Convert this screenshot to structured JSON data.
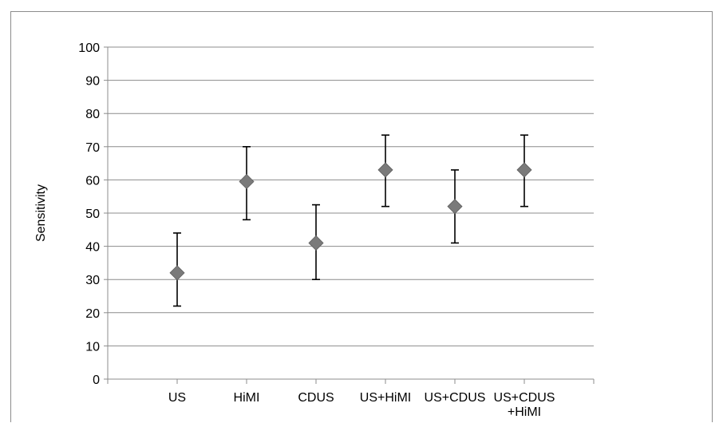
{
  "chart_data": {
    "type": "scatter",
    "title": "",
    "xlabel": "",
    "ylabel": "Sensitivity",
    "ylim": [
      0,
      100
    ],
    "yticks": [
      0,
      10,
      20,
      30,
      40,
      50,
      60,
      70,
      80,
      90,
      100
    ],
    "grid": true,
    "legend": "none",
    "categories": [
      [
        "US"
      ],
      [
        "HiMI"
      ],
      [
        "CDUS"
      ],
      [
        "US+HiMI"
      ],
      [
        "US+CDUS"
      ],
      [
        "US+CDUS",
        "+HiMI"
      ]
    ],
    "series": [
      {
        "values": [
          32,
          59.5,
          41,
          63,
          52,
          63
        ],
        "lower": [
          22,
          48,
          30,
          52,
          41,
          52
        ],
        "upper": [
          44,
          70,
          52.5,
          73.5,
          63,
          73.5
        ]
      }
    ],
    "colors": {
      "marker": "#7a7a7a",
      "errorbar": "#000000",
      "grid": "#8c8c8c",
      "axis": "#8c8c8c"
    }
  }
}
